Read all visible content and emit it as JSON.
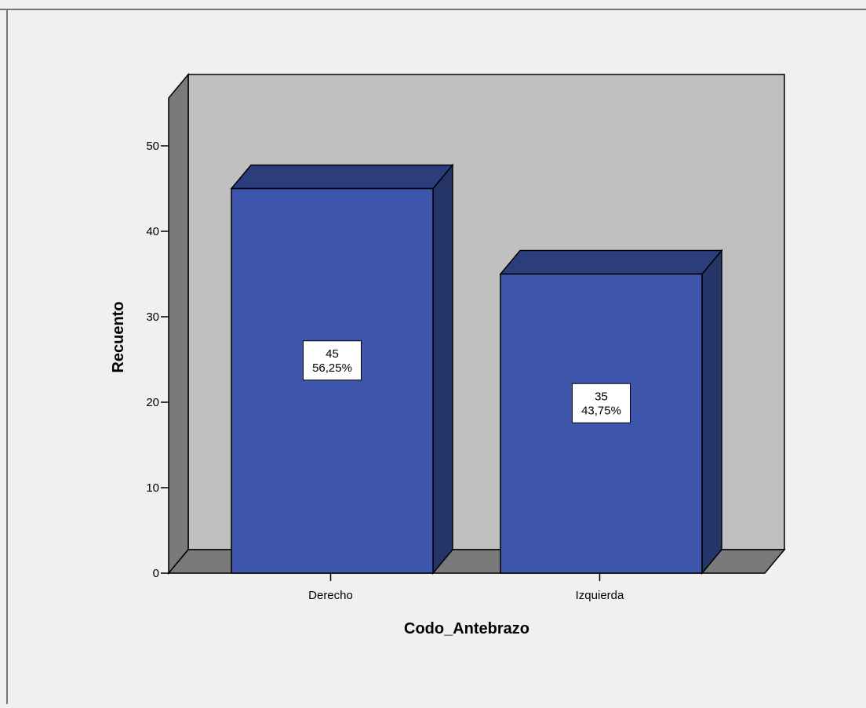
{
  "chart_data": {
    "type": "bar",
    "title": "",
    "xlabel": "Codo_Antebrazo",
    "ylabel": "Recuento",
    "categories": [
      "Derecho",
      "Izquierda"
    ],
    "values": [
      45,
      35
    ],
    "data_labels": [
      {
        "count": "45",
        "percent": "56,25%"
      },
      {
        "count": "35",
        "percent": "43,75%"
      }
    ],
    "ylim": [
      0,
      55
    ],
    "yticks": [
      0,
      10,
      20,
      30,
      40,
      50
    ],
    "grid": false,
    "legend": "none",
    "style": "3d",
    "colors": {
      "bar_front": "#3d56ab",
      "bar_top": "#2c3d7c",
      "bar_side": "#253567",
      "back_wall": "#c0c0c0",
      "side_wall": "#7a7a7a",
      "floor": "#7a7a7a",
      "background": "#f0f0f0"
    }
  }
}
